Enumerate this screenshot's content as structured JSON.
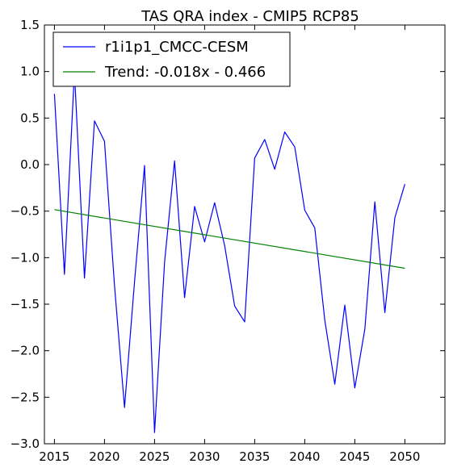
{
  "chart_data": {
    "type": "line",
    "title": "TAS QRA index - CMIP5 RCP85",
    "xlabel": "",
    "ylabel": "",
    "xlim": [
      2014,
      2054
    ],
    "ylim": [
      -3.0,
      1.5
    ],
    "grid": false,
    "legend_placement": "top-left",
    "x_ticks": [
      2015,
      2020,
      2025,
      2030,
      2035,
      2040,
      2045,
      2050
    ],
    "x_tick_labels": [
      "2015",
      "2020",
      "2025",
      "2030",
      "2035",
      "2040",
      "2045",
      "2050"
    ],
    "y_ticks": [
      1.5,
      1.0,
      0.5,
      0.0,
      -0.5,
      -1.0,
      -1.5,
      -2.0,
      -2.5,
      -3.0
    ],
    "y_tick_labels": [
      "1.5",
      "1.0",
      "0.5",
      "0.0",
      "−0.5",
      "−1.0",
      "−1.5",
      "−2.0",
      "−2.5",
      "−3.0"
    ],
    "series": [
      {
        "name": "r1i1p1_CMCC-CESM",
        "color": "#0000ff",
        "x": [
          2015,
          2016,
          2017,
          2018,
          2019,
          2020,
          2021,
          2022,
          2023,
          2024,
          2025,
          2026,
          2027,
          2028,
          2029,
          2030,
          2031,
          2032,
          2033,
          2034,
          2035,
          2036,
          2037,
          2038,
          2039,
          2040,
          2041,
          2042,
          2043,
          2044,
          2045,
          2046,
          2047,
          2048,
          2049,
          2050
        ],
        "y": [
          0.76,
          -1.18,
          1.0,
          -1.22,
          0.47,
          0.25,
          -1.3,
          -2.61,
          -1.26,
          -0.01,
          -2.88,
          -1.05,
          0.04,
          -1.43,
          -0.45,
          -0.83,
          -0.41,
          -0.87,
          -1.52,
          -1.69,
          0.07,
          0.27,
          -0.05,
          0.35,
          0.19,
          -0.49,
          -0.68,
          -1.67,
          -2.36,
          -1.51,
          -2.4,
          -1.77,
          -0.4,
          -1.59,
          -0.57,
          -0.21
        ]
      },
      {
        "name": "Trend: -0.018x - 0.466",
        "color": "#008000",
        "x": [
          2015,
          2050
        ],
        "y": [
          -0.484,
          -1.114
        ]
      }
    ]
  }
}
